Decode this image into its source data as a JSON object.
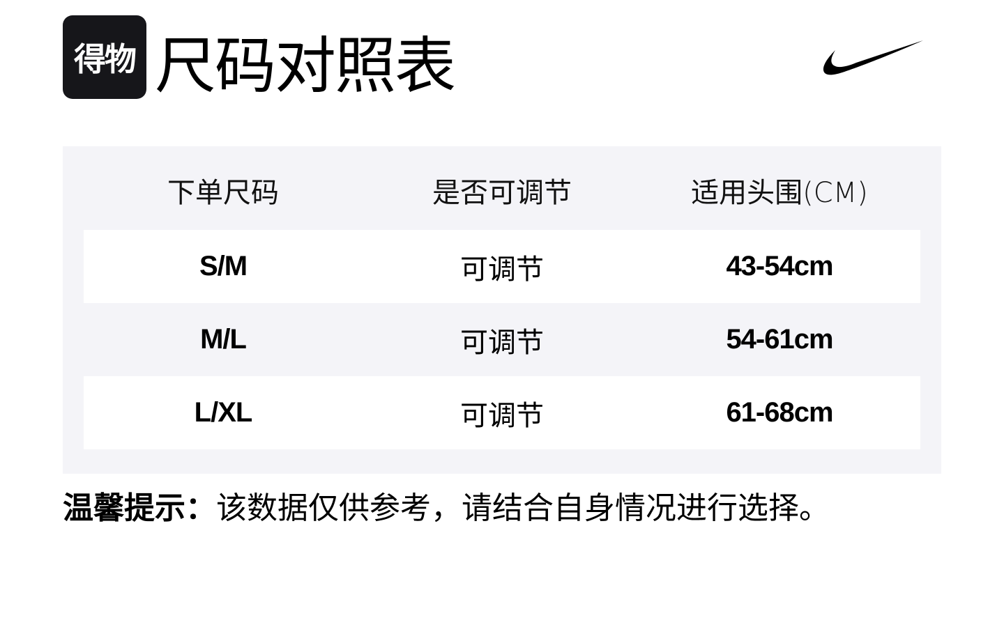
{
  "header": {
    "logo_text": "得物",
    "title": "尺码对照表",
    "brand_icon": "nike-swoosh-icon"
  },
  "table": {
    "headers": [
      "下单尺码",
      "是否可调节",
      "适用头围(CM)"
    ],
    "rows": [
      [
        "S/M",
        "可调节",
        "43-54cm"
      ],
      [
        "M/L",
        "可调节",
        "54-61cm"
      ],
      [
        "L/XL",
        "可调节",
        "61-68cm"
      ]
    ]
  },
  "note": {
    "label": "温馨提示：",
    "text": "该数据仅供参考，请结合自身情况进行选择。"
  },
  "colors": {
    "panel_bg": "#f4f4f8",
    "logo_bg": "#16161a",
    "row_bg": "#ffffff"
  }
}
